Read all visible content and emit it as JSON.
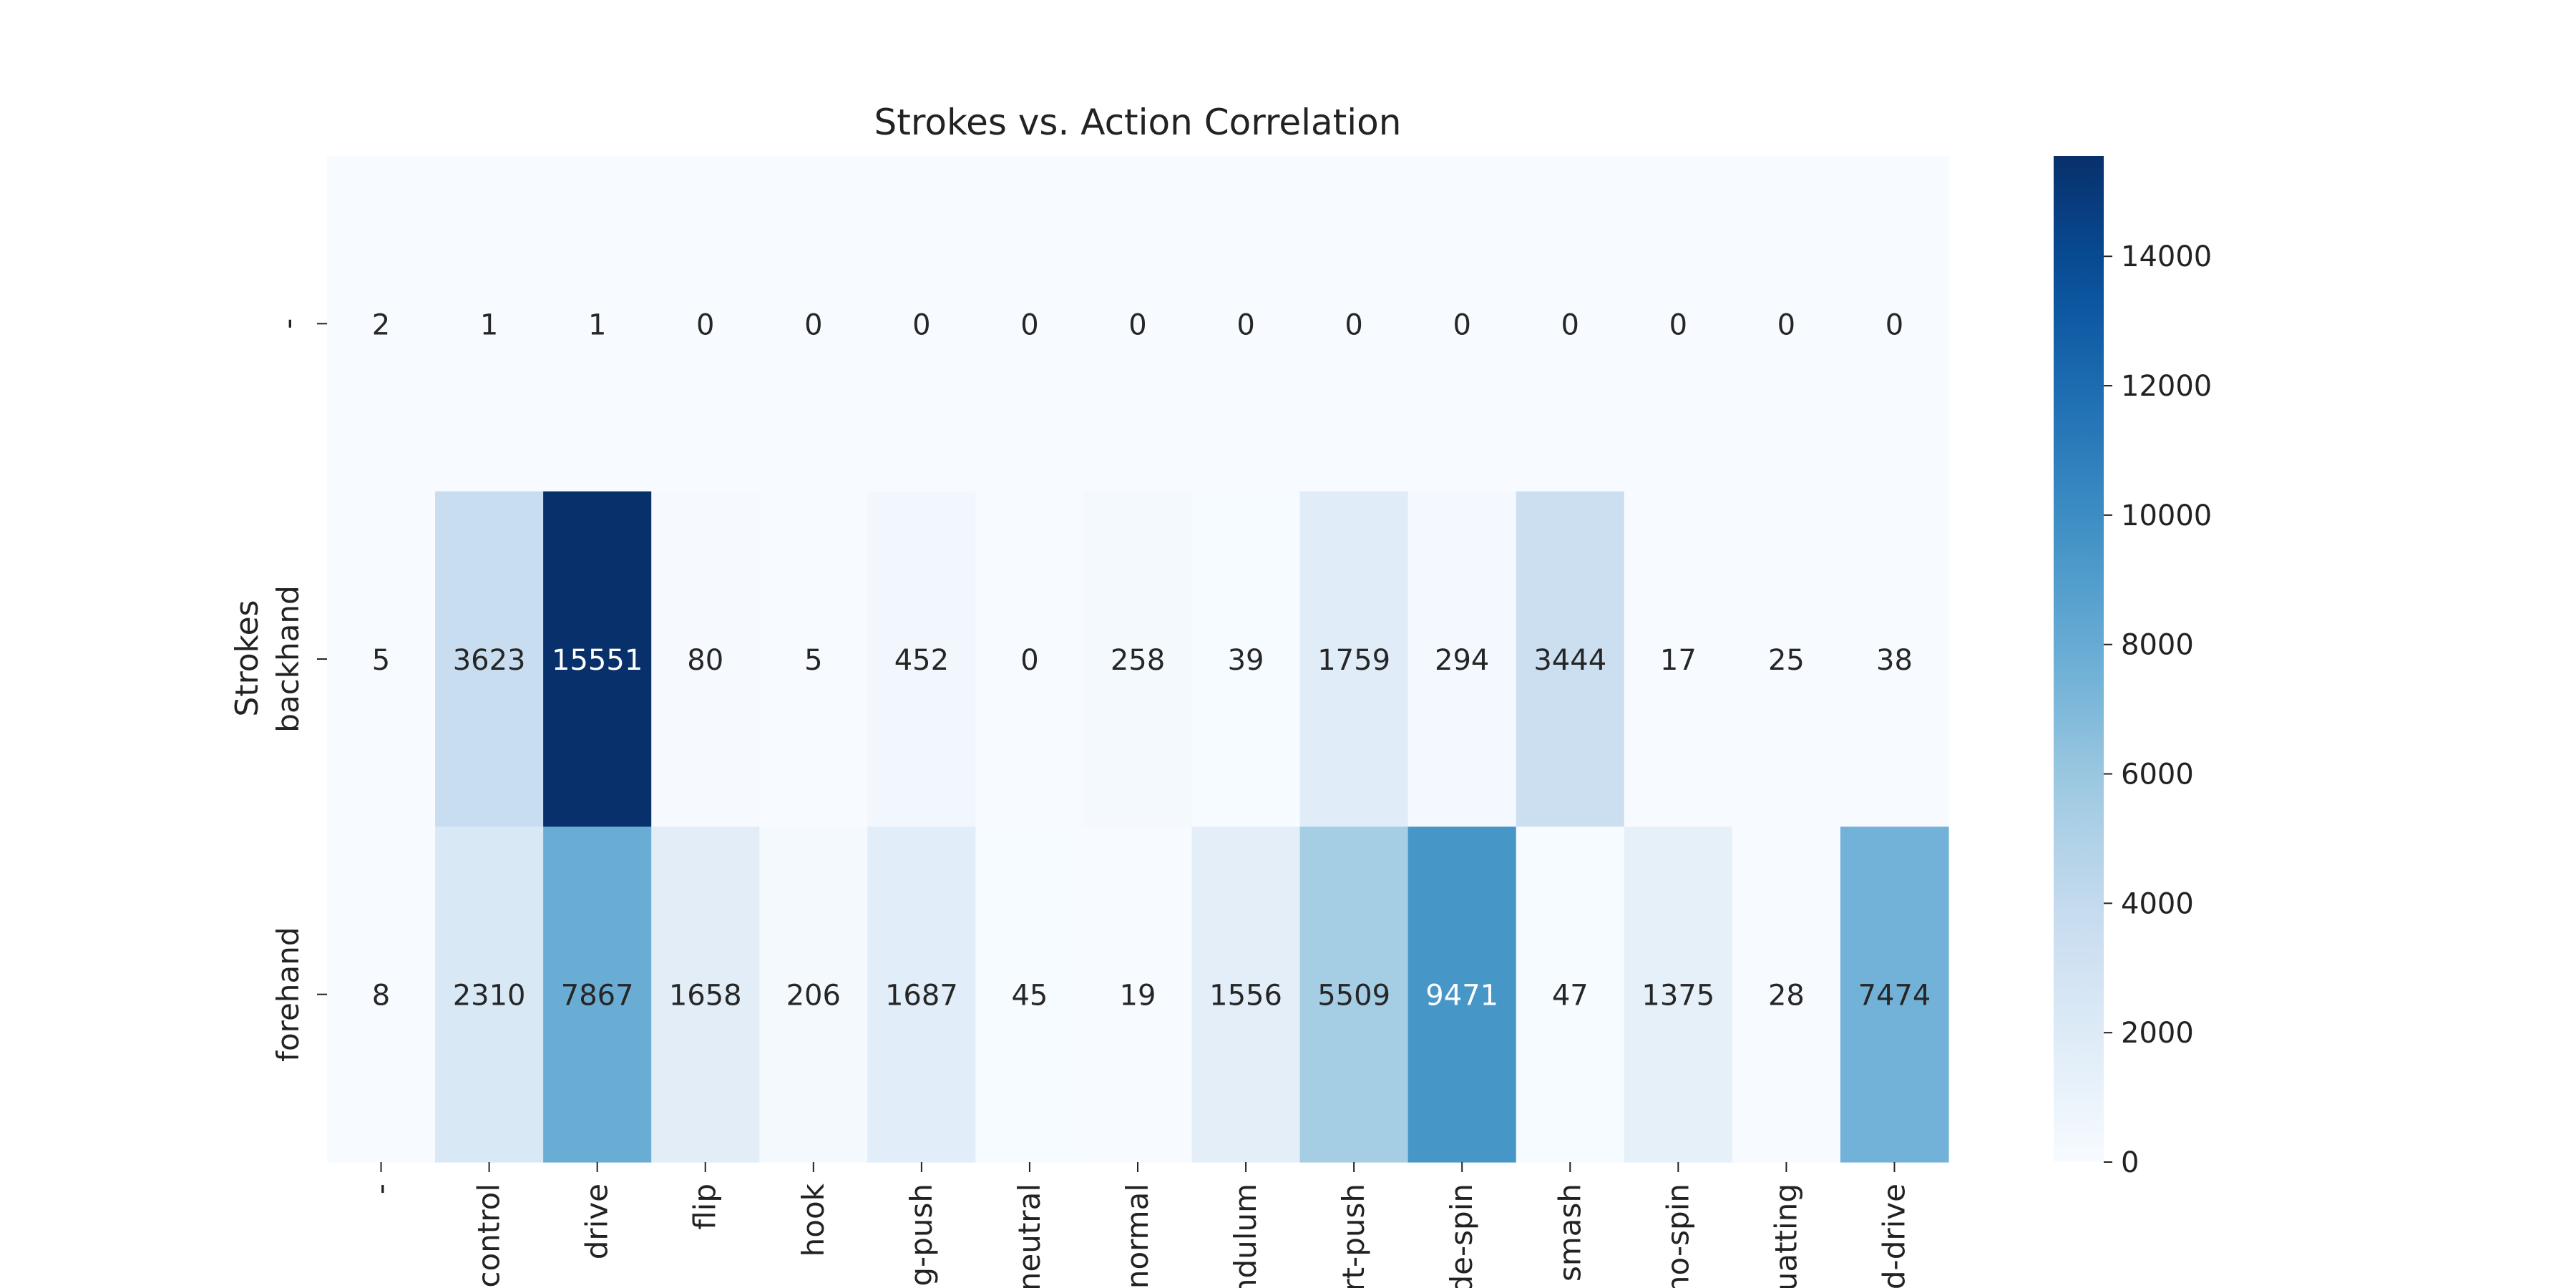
{
  "chart_data": {
    "type": "heatmap",
    "title": "Strokes vs. Action Correlation",
    "ylabel": "Strokes",
    "xlabel": "",
    "x_categories": [
      "-",
      "control",
      "drive",
      "flip",
      "hook",
      "ong-push",
      "neutral",
      "normal",
      "endulum",
      "ort-push",
      "side-spin",
      "smash",
      "/no-spin",
      "quatting",
      "nd-drive"
    ],
    "y_categories": [
      "-",
      "backhand",
      "forehand"
    ],
    "values": [
      [
        2,
        1,
        1,
        0,
        0,
        0,
        0,
        0,
        0,
        0,
        0,
        0,
        0,
        0,
        0
      ],
      [
        5,
        3623,
        15551,
        80,
        5,
        452,
        0,
        258,
        39,
        1759,
        294,
        3444,
        17,
        25,
        38
      ],
      [
        8,
        2310,
        7867,
        1658,
        206,
        1687,
        45,
        19,
        1556,
        5509,
        9471,
        47,
        1375,
        28,
        7474
      ]
    ],
    "colormap": "Blues",
    "vmin": 0,
    "vmax": 15551,
    "colorbar_ticks": [
      0,
      2000,
      4000,
      6000,
      8000,
      10000,
      12000,
      14000
    ],
    "annotations": true
  }
}
